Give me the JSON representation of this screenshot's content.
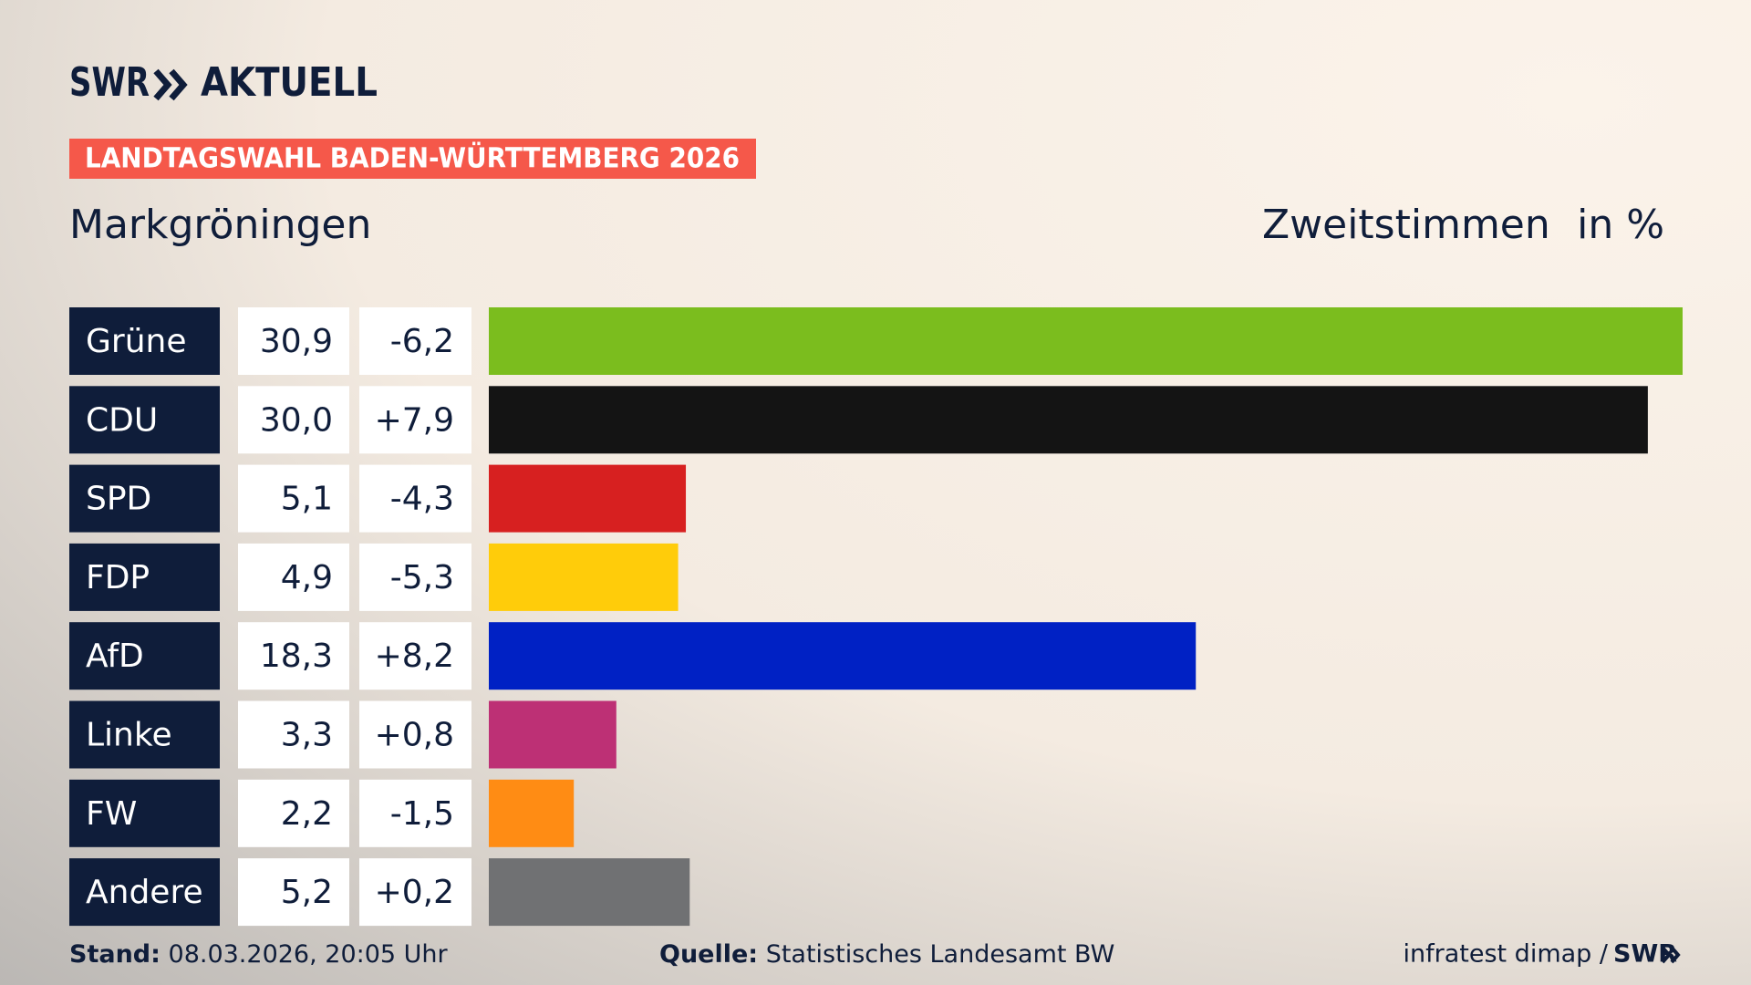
{
  "header": {
    "brand": "SWR",
    "brand_sub": "AKTUELL",
    "banner": "LANDTAGSWAHL BADEN-WÜRTTEMBERG 2026"
  },
  "chart_data": {
    "type": "bar",
    "title": "Markgröningen",
    "subtitle": "Zweitstimmen",
    "unit": "in %",
    "categories": [
      "Grüne",
      "CDU",
      "SPD",
      "FDP",
      "AfD",
      "Linke",
      "FW",
      "Andere"
    ],
    "values": [
      30.9,
      30.0,
      5.1,
      4.9,
      18.3,
      3.3,
      2.2,
      5.2
    ],
    "value_labels": [
      "30,9",
      "30,0",
      "5,1",
      "4,9",
      "18,3",
      "3,3",
      "2,2",
      "5,2"
    ],
    "changes": [
      -6.2,
      7.9,
      -4.3,
      -5.3,
      8.2,
      0.8,
      -1.5,
      0.2
    ],
    "change_labels": [
      "-6,2",
      "+7,9",
      "-4,3",
      "-5,3",
      "+8,2",
      "+0,8",
      "-1,5",
      "+0,2"
    ],
    "colors": [
      "#7bbd1e",
      "#141414",
      "#d72020",
      "#ffcc0a",
      "#0021c4",
      "#bd3075",
      "#ff8c14",
      "#707173"
    ]
  },
  "footer": {
    "stand_label": "Stand:",
    "stand": "08.03.2026, 20:05 Uhr",
    "source_label": "Quelle:",
    "source": "Statistisches Landesamt BW",
    "credit": "infratest dimap /",
    "credit_brand": "SWR"
  }
}
